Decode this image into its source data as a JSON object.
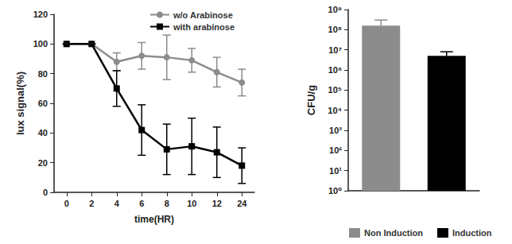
{
  "chart_data": [
    {
      "type": "line",
      "x_label": "time(HR)",
      "y_label": "lux signal(%)",
      "categories": [
        "0",
        "2",
        "4",
        "6",
        "8",
        "10",
        "12",
        "24"
      ],
      "series": [
        {
          "name": "w/o Arabinose",
          "color": "#8c8c8c",
          "marker": "circle",
          "values": [
            100,
            100,
            88,
            92,
            91,
            89,
            81,
            74
          ],
          "errors": [
            0,
            0,
            6,
            9,
            15,
            8,
            10,
            9
          ]
        },
        {
          "name": "with arabinose",
          "color": "#000000",
          "marker": "square",
          "values": [
            100,
            100,
            70,
            42,
            29,
            31,
            27,
            18
          ],
          "errors": [
            0,
            0,
            12,
            17,
            17,
            19,
            17,
            12
          ]
        }
      ],
      "ylim": [
        0,
        120
      ],
      "yticks": [
        0,
        20,
        40,
        60,
        80,
        100,
        120
      ],
      "grid": false,
      "legend": "top-right"
    },
    {
      "type": "bar",
      "y_label": "CFU/g",
      "categories": [
        null,
        null
      ],
      "series": [
        {
          "name": "Non Induction",
          "color": "#8c8c8c",
          "values": [
            160000000,
            null
          ],
          "errors": [
            140000000,
            null
          ]
        },
        {
          "name": "Induction",
          "color": "#000000",
          "values": [
            null,
            5000000
          ],
          "errors": [
            null,
            3000000
          ]
        }
      ],
      "log": "y",
      "ylim": [
        1,
        1000000000
      ],
      "yticks": [
        {
          "value": 1,
          "label": "10⁰"
        },
        {
          "value": 10,
          "label": "10¹"
        },
        {
          "value": 100,
          "label": "10²"
        },
        {
          "value": 1000,
          "label": "10³"
        },
        {
          "value": 10000,
          "label": "10⁴"
        },
        {
          "value": 100000,
          "label": "10⁵"
        },
        {
          "value": 1000000,
          "label": "10⁶"
        },
        {
          "value": 10000000,
          "label": "10⁷"
        },
        {
          "value": 100000000,
          "label": "10⁸"
        },
        {
          "value": 1000000000,
          "label": "10⁹"
        }
      ],
      "grid": false,
      "tick_labels": "y",
      "legend": "bottom"
    }
  ]
}
